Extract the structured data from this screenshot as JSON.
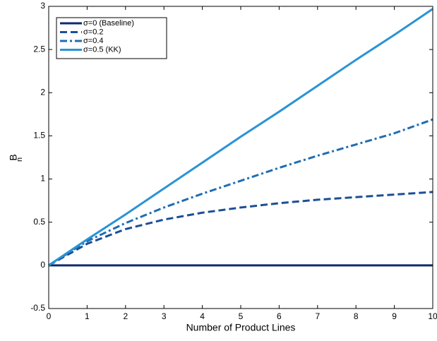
{
  "chart_data": {
    "type": "line",
    "xlabel": "Number of Product Lines",
    "ylabel": {
      "text": "B",
      "subscript": "n"
    },
    "x": [
      0,
      1,
      2,
      3,
      4,
      5,
      6,
      7,
      8,
      9,
      10
    ],
    "series": [
      {
        "name": "σ=0 (Baseline)",
        "color": "#0d2b6b",
        "dash": "solid",
        "values": [
          0,
          0,
          0,
          0,
          0,
          0,
          0,
          0,
          0,
          0,
          0
        ]
      },
      {
        "name": "σ=0.2",
        "color": "#1a4f95",
        "dash": "dashed",
        "values": [
          0,
          0.25,
          0.42,
          0.53,
          0.61,
          0.67,
          0.72,
          0.76,
          0.79,
          0.82,
          0.85
        ]
      },
      {
        "name": "σ=0.4",
        "color": "#1e6db3",
        "dash": "dashdot",
        "values": [
          0,
          0.28,
          0.49,
          0.67,
          0.83,
          0.98,
          1.13,
          1.27,
          1.4,
          1.53,
          1.69
        ]
      },
      {
        "name": "σ=0.5 (KK)",
        "color": "#2a93d5",
        "dash": "solid",
        "values": [
          0,
          0.3,
          0.59,
          0.89,
          1.19,
          1.49,
          1.78,
          2.08,
          2.38,
          2.67,
          2.97
        ]
      }
    ],
    "xlim": [
      0,
      10
    ],
    "xticks": [
      0,
      1,
      2,
      3,
      4,
      5,
      6,
      7,
      8,
      9,
      10
    ],
    "ylim": [
      -0.5,
      3
    ],
    "yticks": [
      -0.5,
      0,
      0.5,
      1,
      1.5,
      2,
      2.5,
      3
    ],
    "legend": "upper left",
    "grid": false
  }
}
